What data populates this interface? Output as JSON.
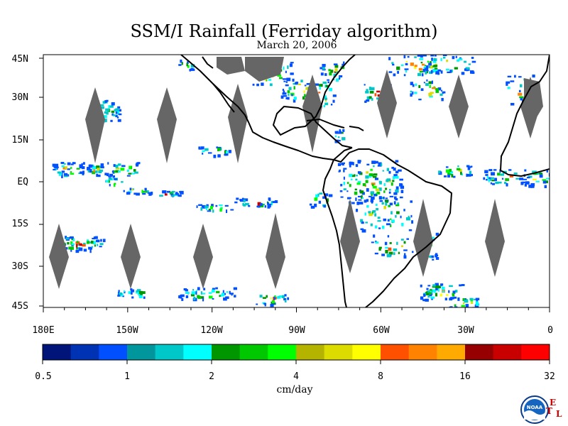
{
  "title": "SSM/I Rainfall (Ferriday algorithm)",
  "date": "March 20, 2006",
  "lat_labels": [
    "45N",
    "30N",
    "15N",
    "EQ",
    "15S",
    "30S",
    "45S"
  ],
  "lon_labels": [
    "180E",
    "150W",
    "120W",
    "90W",
    "60W",
    "30W",
    "0"
  ],
  "colorbar": {
    "units": "cm/day",
    "tick_labels": [
      "0.5",
      "1",
      "2",
      "4",
      "8",
      "16",
      "32"
    ],
    "colors": [
      "#00147a",
      "#0032b4",
      "#0050ff",
      "#00969b",
      "#00c8c8",
      "#00ffff",
      "#009600",
      "#00c800",
      "#00ff00",
      "#b4b400",
      "#dcdc00",
      "#ffff00",
      "#ff5000",
      "#ff8200",
      "#ffaa00",
      "#960000",
      "#c80000",
      "#ff0000"
    ]
  },
  "logo": {
    "text": "NOAA",
    "side_letters": [
      "E",
      "T",
      "L"
    ]
  },
  "colors": {
    "swath_gap": "#666666",
    "coast": "#000000"
  }
}
